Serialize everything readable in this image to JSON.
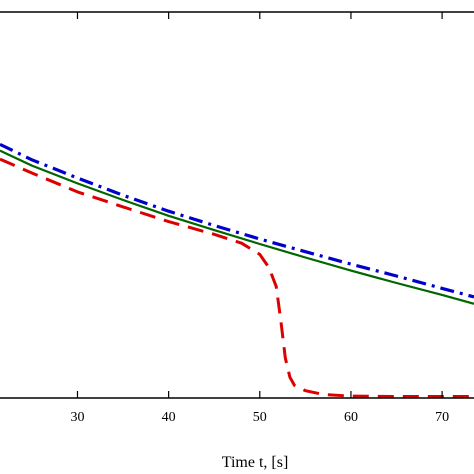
{
  "chart_data": {
    "type": "line",
    "xlabel": "Time t, [s]",
    "ylabel": "",
    "title": "",
    "xlim": [
      21.5,
      73.5
    ],
    "ylim": [
      0,
      1
    ],
    "x_ticks": [
      30,
      40,
      50,
      60,
      70
    ],
    "grid": false,
    "series": [
      {
        "color": "#0000cc",
        "dash": "dash-dot",
        "x": [
          21.5,
          25,
          30,
          35,
          40,
          45,
          50,
          55,
          60,
          65,
          70,
          73.5
        ],
        "y": [
          0.657,
          0.617,
          0.57,
          0.525,
          0.484,
          0.447,
          0.412,
          0.379,
          0.347,
          0.316,
          0.284,
          0.262
        ]
      },
      {
        "color": "#006600",
        "dash": "solid",
        "x": [
          21.5,
          25,
          30,
          35,
          40,
          45,
          50,
          55,
          60,
          65,
          70,
          73.5
        ],
        "y": [
          0.641,
          0.602,
          0.556,
          0.513,
          0.472,
          0.435,
          0.399,
          0.364,
          0.33,
          0.298,
          0.267,
          0.244
        ]
      },
      {
        "color": "#dd0000",
        "dash": "dashed",
        "x": [
          21.5,
          25,
          30,
          35,
          40,
          45,
          48,
          50,
          51,
          51.8,
          52.3,
          52.8,
          53.3,
          53.8,
          55,
          57,
          60,
          65,
          70,
          73.5
        ],
        "y": [
          0.619,
          0.583,
          0.534,
          0.495,
          0.457,
          0.424,
          0.401,
          0.372,
          0.338,
          0.289,
          0.201,
          0.104,
          0.054,
          0.033,
          0.019,
          0.009,
          0.005,
          0.004,
          0.004,
          0.004
        ]
      }
    ]
  }
}
